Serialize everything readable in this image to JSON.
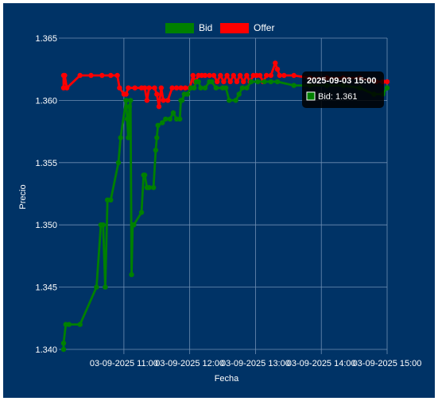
{
  "chart_data": {
    "type": "line",
    "title": "",
    "xlabel": "Fecha",
    "ylabel": "Precio",
    "legend_position": "top",
    "grid": true,
    "ylim": [
      1.34,
      1.365
    ],
    "yticks": [
      "1.340",
      "1.345",
      "1.350",
      "1.355",
      "1.360",
      "1.365"
    ],
    "xlim": [
      "2025-09-03 10:05",
      "2025-09-03 15:00"
    ],
    "xticks": [
      {
        "t": "2025-09-03 11:00",
        "label": "03-09-2025 11:00"
      },
      {
        "t": "2025-09-03 12:00",
        "label": "03-09-2025 12:00"
      },
      {
        "t": "2025-09-03 13:00",
        "label": "03-09-2025 13:00"
      },
      {
        "t": "2025-09-03 14:00",
        "label": "03-09-2025 14:00"
      },
      {
        "t": "2025-09-03 15:00",
        "label": "03-09-2025 15:00"
      }
    ],
    "series": [
      {
        "name": "Bid",
        "color": "#008000",
        "points": [
          [
            "10:05",
            1.34
          ],
          [
            "10:05",
            1.3405
          ],
          [
            "10:07",
            1.342
          ],
          [
            "10:10",
            1.342
          ],
          [
            "10:20",
            1.342
          ],
          [
            "10:35",
            1.345
          ],
          [
            "10:39",
            1.35
          ],
          [
            "10:41",
            1.35
          ],
          [
            "10:43",
            1.345
          ],
          [
            "10:45",
            1.352
          ],
          [
            "10:48",
            1.352
          ],
          [
            "10:55",
            1.355
          ],
          [
            "10:57",
            1.357
          ],
          [
            "11:02",
            1.36
          ],
          [
            "11:03",
            1.3585
          ],
          [
            "11:04",
            1.357
          ],
          [
            "11:05",
            1.3595
          ],
          [
            "11:06",
            1.36
          ],
          [
            "11:07",
            1.346
          ],
          [
            "11:08",
            1.35
          ],
          [
            "11:09",
            1.35
          ],
          [
            "11:16",
            1.351
          ],
          [
            "11:18",
            1.354
          ],
          [
            "11:19",
            1.354
          ],
          [
            "11:21",
            1.353
          ],
          [
            "11:23",
            1.353
          ],
          [
            "11:27",
            1.353
          ],
          [
            "11:29",
            1.356
          ],
          [
            "11:30",
            1.357
          ],
          [
            "11:31",
            1.358
          ],
          [
            "11:35",
            1.3582
          ],
          [
            "11:38",
            1.3585
          ],
          [
            "11:42",
            1.3585
          ],
          [
            "11:45",
            1.359
          ],
          [
            "11:48",
            1.3585
          ],
          [
            "11:51",
            1.3585
          ],
          [
            "11:52",
            1.36
          ],
          [
            "11:53",
            1.36
          ],
          [
            "11:55",
            1.3605
          ],
          [
            "11:58",
            1.3605
          ],
          [
            "12:01",
            1.361
          ],
          [
            "12:04",
            1.361
          ],
          [
            "12:06",
            1.3615
          ],
          [
            "12:08",
            1.3615
          ],
          [
            "12:10",
            1.361
          ],
          [
            "12:14",
            1.361
          ],
          [
            "12:18",
            1.3615
          ],
          [
            "12:20",
            1.3615
          ],
          [
            "12:24",
            1.361
          ],
          [
            "12:30",
            1.361
          ],
          [
            "12:33",
            1.361
          ],
          [
            "12:36",
            1.36
          ],
          [
            "12:42",
            1.36
          ],
          [
            "12:45",
            1.3605
          ],
          [
            "12:48",
            1.361
          ],
          [
            "12:52",
            1.361
          ],
          [
            "12:56",
            1.3615
          ],
          [
            "13:02",
            1.3615
          ],
          [
            "13:08",
            1.3615
          ],
          [
            "13:14",
            1.3615
          ],
          [
            "13:20",
            1.3615
          ],
          [
            "13:35",
            1.3612
          ],
          [
            "13:50",
            1.3612
          ],
          [
            "14:05",
            1.3612
          ],
          [
            "14:20",
            1.3612
          ],
          [
            "14:35",
            1.361
          ],
          [
            "14:48",
            1.3605
          ],
          [
            "14:56",
            1.3605
          ],
          [
            "15:00",
            1.361
          ]
        ]
      },
      {
        "name": "Offer",
        "color": "#ff0000",
        "points": [
          [
            "10:05",
            1.362
          ],
          [
            "10:05",
            1.361
          ],
          [
            "10:06",
            1.362
          ],
          [
            "10:08",
            1.361
          ],
          [
            "10:20",
            1.362
          ],
          [
            "10:30",
            1.362
          ],
          [
            "10:40",
            1.362
          ],
          [
            "10:48",
            1.362
          ],
          [
            "10:54",
            1.362
          ],
          [
            "10:56",
            1.361
          ],
          [
            "11:00",
            1.3605
          ],
          [
            "11:02",
            1.3605
          ],
          [
            "11:04",
            1.361
          ],
          [
            "11:10",
            1.361
          ],
          [
            "11:16",
            1.361
          ],
          [
            "11:19",
            1.361
          ],
          [
            "11:21",
            1.36
          ],
          [
            "11:23",
            1.361
          ],
          [
            "11:28",
            1.361
          ],
          [
            "11:30",
            1.3605
          ],
          [
            "11:32",
            1.3595
          ],
          [
            "11:34",
            1.361
          ],
          [
            "11:36",
            1.36
          ],
          [
            "11:40",
            1.36
          ],
          [
            "11:44",
            1.361
          ],
          [
            "11:48",
            1.361
          ],
          [
            "11:52",
            1.361
          ],
          [
            "11:56",
            1.361
          ],
          [
            "12:00",
            1.361
          ],
          [
            "12:03",
            1.362
          ],
          [
            "12:05",
            1.3615
          ],
          [
            "12:08",
            1.362
          ],
          [
            "12:11",
            1.362
          ],
          [
            "12:14",
            1.362
          ],
          [
            "12:18",
            1.362
          ],
          [
            "12:22",
            1.362
          ],
          [
            "12:25",
            1.3615
          ],
          [
            "12:28",
            1.362
          ],
          [
            "12:31",
            1.3615
          ],
          [
            "12:34",
            1.362
          ],
          [
            "12:37",
            1.3615
          ],
          [
            "12:40",
            1.362
          ],
          [
            "12:43",
            1.3615
          ],
          [
            "12:46",
            1.362
          ],
          [
            "12:49",
            1.3615
          ],
          [
            "12:52",
            1.362
          ],
          [
            "12:55",
            1.3615
          ],
          [
            "12:58",
            1.362
          ],
          [
            "13:01",
            1.362
          ],
          [
            "13:04",
            1.362
          ],
          [
            "13:07",
            1.3615
          ],
          [
            "13:10",
            1.362
          ],
          [
            "13:14",
            1.362
          ],
          [
            "13:18",
            1.363
          ],
          [
            "13:20",
            1.3625
          ],
          [
            "13:22",
            1.362
          ],
          [
            "13:26",
            1.362
          ],
          [
            "13:35",
            1.362
          ],
          [
            "13:50",
            1.3618
          ],
          [
            "14:05",
            1.3618
          ],
          [
            "14:20",
            1.3618
          ],
          [
            "14:35",
            1.3618
          ],
          [
            "14:50",
            1.3615
          ],
          [
            "14:56",
            1.3615
          ],
          [
            "15:00",
            1.3615
          ]
        ]
      }
    ],
    "tooltip": {
      "title": "2025-09-03 15:00",
      "label": "Bid: 1.361",
      "swatch_color": "#008000"
    }
  },
  "colors": {
    "background": "#003366",
    "grid": "#6f8fb3",
    "bid": "#008000",
    "offer": "#ff0000"
  }
}
